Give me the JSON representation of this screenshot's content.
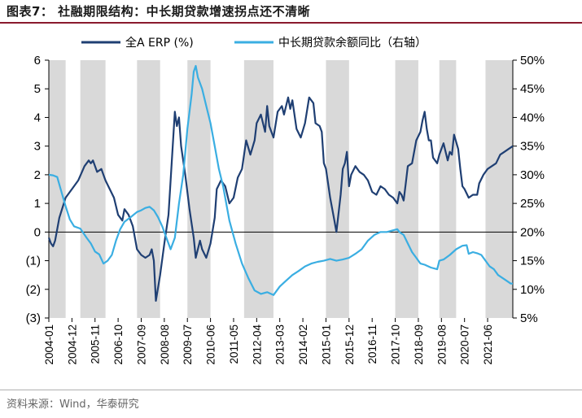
{
  "figure_title": "图表7： 社融期限结构：中长期贷款增速拐点还不清晰",
  "source": "资料来源：Wind，华泰研究",
  "colors": {
    "erp": "#1f3f73",
    "loan": "#3aaee2",
    "shade": "#d9d9d9",
    "title_rule": "#8a1a2e"
  },
  "chart_data": {
    "type": "line",
    "title": "社融期限结构：中长期贷款增速拐点还不清晰",
    "x_start": "2004-01",
    "x_end": "2022-06",
    "x_ticks": [
      "2004-01",
      "2004-12",
      "2005-11",
      "2006-10",
      "2007-09",
      "2008-08",
      "2009-07",
      "2010-06",
      "2011-05",
      "2012-04",
      "2013-03",
      "2014-02",
      "2015-01",
      "2015-12",
      "2016-11",
      "2017-10",
      "2018-09",
      "2019-08",
      "2020-07",
      "2021-06"
    ],
    "y_left": {
      "label": "",
      "ylim": [
        -3,
        6
      ],
      "ticks": [
        "6",
        "5",
        "4",
        "3",
        "2",
        "1",
        "0",
        "(1)",
        "(2)",
        "(3)"
      ]
    },
    "y_right": {
      "label": "",
      "ylim": [
        5,
        50
      ],
      "ticks": [
        "50%",
        "45%",
        "40%",
        "35%",
        "30%",
        "25%",
        "20%",
        "15%",
        "10%",
        "5%"
      ]
    },
    "shaded_periods": [
      [
        "2004-01",
        "2004-09"
      ],
      [
        "2005-04",
        "2006-04"
      ],
      [
        "2007-07",
        "2008-06"
      ],
      [
        "2009-07",
        "2010-06"
      ],
      [
        "2011-10",
        "2012-12"
      ],
      [
        "2015-01",
        "2015-12"
      ],
      [
        "2017-10",
        "2018-09"
      ],
      [
        "2019-07",
        "2020-03"
      ],
      [
        "2021-05",
        "2022-06"
      ]
    ],
    "series": [
      {
        "name": "全A ERP (%)",
        "axis": "left",
        "color": "#1f3f73",
        "points": [
          [
            "2004-01",
            -0.2
          ],
          [
            "2004-02",
            -0.4
          ],
          [
            "2004-03",
            -0.5
          ],
          [
            "2004-04",
            -0.3
          ],
          [
            "2004-06",
            0.5
          ],
          [
            "2004-09",
            1.2
          ],
          [
            "2004-12",
            1.5
          ],
          [
            "2005-03",
            1.8
          ],
          [
            "2005-06",
            2.3
          ],
          [
            "2005-08",
            2.5
          ],
          [
            "2005-09",
            2.4
          ],
          [
            "2005-10",
            2.5
          ],
          [
            "2005-12",
            2.1
          ],
          [
            "2006-02",
            2.2
          ],
          [
            "2006-04",
            1.8
          ],
          [
            "2006-06",
            1.5
          ],
          [
            "2006-08",
            1.2
          ],
          [
            "2006-10",
            0.6
          ],
          [
            "2006-12",
            0.4
          ],
          [
            "2007-01",
            0.8
          ],
          [
            "2007-03",
            0.6
          ],
          [
            "2007-05",
            0.2
          ],
          [
            "2007-07",
            -0.6
          ],
          [
            "2007-09",
            -0.8
          ],
          [
            "2007-11",
            -0.9
          ],
          [
            "2008-01",
            -0.8
          ],
          [
            "2008-02",
            -0.6
          ],
          [
            "2008-03",
            -1.0
          ],
          [
            "2008-04",
            -2.4
          ],
          [
            "2008-06",
            -1.5
          ],
          [
            "2008-08",
            -0.4
          ],
          [
            "2008-10",
            0.6
          ],
          [
            "2008-11",
            1.8
          ],
          [
            "2009-01",
            4.2
          ],
          [
            "2009-02",
            3.7
          ],
          [
            "2009-03",
            4.0
          ],
          [
            "2009-04",
            3.0
          ],
          [
            "2009-06",
            2.0
          ],
          [
            "2009-07",
            1.4
          ],
          [
            "2009-08",
            0.8
          ],
          [
            "2009-10",
            -0.2
          ],
          [
            "2009-11",
            -0.9
          ],
          [
            "2010-01",
            -0.3
          ],
          [
            "2010-02",
            -0.6
          ],
          [
            "2010-04",
            -0.9
          ],
          [
            "2010-06",
            -0.4
          ],
          [
            "2010-08",
            0.5
          ],
          [
            "2010-09",
            1.5
          ],
          [
            "2010-11",
            1.8
          ],
          [
            "2011-01",
            1.6
          ],
          [
            "2011-03",
            1.0
          ],
          [
            "2011-05",
            1.2
          ],
          [
            "2011-07",
            1.9
          ],
          [
            "2011-09",
            2.2
          ],
          [
            "2011-11",
            3.2
          ],
          [
            "2012-01",
            2.7
          ],
          [
            "2012-03",
            3.2
          ],
          [
            "2012-04",
            3.8
          ],
          [
            "2012-06",
            4.1
          ],
          [
            "2012-08",
            3.5
          ],
          [
            "2012-09",
            4.4
          ],
          [
            "2012-10",
            3.7
          ],
          [
            "2012-12",
            3.3
          ],
          [
            "2013-02",
            4.2
          ],
          [
            "2013-04",
            4.4
          ],
          [
            "2013-05",
            4.1
          ],
          [
            "2013-07",
            4.7
          ],
          [
            "2013-08",
            4.3
          ],
          [
            "2013-09",
            4.6
          ],
          [
            "2013-11",
            3.6
          ],
          [
            "2014-01",
            3.3
          ],
          [
            "2014-03",
            3.8
          ],
          [
            "2014-05",
            4.7
          ],
          [
            "2014-07",
            4.5
          ],
          [
            "2014-08",
            3.8
          ],
          [
            "2014-10",
            3.7
          ],
          [
            "2014-11",
            3.5
          ],
          [
            "2014-12",
            2.4
          ],
          [
            "2015-01",
            2.2
          ],
          [
            "2015-03",
            1.2
          ],
          [
            "2015-05",
            0.4
          ],
          [
            "2015-06",
            0.0
          ],
          [
            "2015-08",
            1.3
          ],
          [
            "2015-09",
            2.2
          ],
          [
            "2015-10",
            2.4
          ],
          [
            "2015-11",
            2.8
          ],
          [
            "2015-12",
            1.6
          ],
          [
            "2016-01",
            2.0
          ],
          [
            "2016-03",
            2.3
          ],
          [
            "2016-05",
            2.1
          ],
          [
            "2016-07",
            2.0
          ],
          [
            "2016-09",
            1.8
          ],
          [
            "2016-11",
            1.4
          ],
          [
            "2017-01",
            1.3
          ],
          [
            "2017-03",
            1.6
          ],
          [
            "2017-05",
            1.5
          ],
          [
            "2017-07",
            1.3
          ],
          [
            "2017-09",
            1.2
          ],
          [
            "2017-11",
            1.0
          ],
          [
            "2017-12",
            1.4
          ],
          [
            "2018-01",
            1.3
          ],
          [
            "2018-02",
            1.1
          ],
          [
            "2018-03",
            1.7
          ],
          [
            "2018-04",
            2.3
          ],
          [
            "2018-06",
            2.4
          ],
          [
            "2018-08",
            3.2
          ],
          [
            "2018-10",
            3.5
          ],
          [
            "2018-11",
            3.9
          ],
          [
            "2018-12",
            4.2
          ],
          [
            "2019-01",
            3.6
          ],
          [
            "2019-02",
            3.2
          ],
          [
            "2019-03",
            3.2
          ],
          [
            "2019-04",
            2.6
          ],
          [
            "2019-06",
            2.4
          ],
          [
            "2019-07",
            2.7
          ],
          [
            "2019-09",
            3.1
          ],
          [
            "2019-11",
            2.5
          ],
          [
            "2019-12",
            2.8
          ],
          [
            "2020-01",
            2.7
          ],
          [
            "2020-02",
            3.4
          ],
          [
            "2020-04",
            2.9
          ],
          [
            "2020-05",
            2.2
          ],
          [
            "2020-06",
            1.6
          ],
          [
            "2020-07",
            1.5
          ],
          [
            "2020-09",
            1.2
          ],
          [
            "2020-11",
            1.3
          ],
          [
            "2021-01",
            1.3
          ],
          [
            "2021-02",
            1.7
          ],
          [
            "2021-04",
            2.0
          ],
          [
            "2021-06",
            2.2
          ],
          [
            "2021-08",
            2.3
          ],
          [
            "2021-10",
            2.4
          ],
          [
            "2021-12",
            2.7
          ],
          [
            "2022-02",
            2.8
          ],
          [
            "2022-04",
            2.9
          ],
          [
            "2022-06",
            3.0
          ]
        ]
      },
      {
        "name": "中长期贷款余额同比（右轴）",
        "axis": "right",
        "color": "#3aaee2",
        "points": [
          [
            "2004-01",
            30.0
          ],
          [
            "2004-03",
            29.9
          ],
          [
            "2004-05",
            29.6
          ],
          [
            "2004-07",
            27.0
          ],
          [
            "2004-09",
            24.5
          ],
          [
            "2004-11",
            22.2
          ],
          [
            "2005-01",
            21.0
          ],
          [
            "2005-04",
            20.6
          ],
          [
            "2005-07",
            19.0
          ],
          [
            "2005-09",
            18.0
          ],
          [
            "2005-11",
            16.6
          ],
          [
            "2006-01",
            16.1
          ],
          [
            "2006-03",
            14.5
          ],
          [
            "2006-05",
            15.0
          ],
          [
            "2006-07",
            16.0
          ],
          [
            "2006-09",
            18.5
          ],
          [
            "2006-11",
            20.5
          ],
          [
            "2007-01",
            21.8
          ],
          [
            "2007-04",
            22.6
          ],
          [
            "2007-07",
            23.5
          ],
          [
            "2007-09",
            23.8
          ],
          [
            "2007-11",
            24.2
          ],
          [
            "2008-01",
            24.4
          ],
          [
            "2008-03",
            23.8
          ],
          [
            "2008-05",
            22.6
          ],
          [
            "2008-07",
            21.0
          ],
          [
            "2008-09",
            19.0
          ],
          [
            "2008-11",
            17.0
          ],
          [
            "2009-01",
            19.0
          ],
          [
            "2009-03",
            25.0
          ],
          [
            "2009-05",
            30.0
          ],
          [
            "2009-07",
            38.0
          ],
          [
            "2009-09",
            44.0
          ],
          [
            "2009-10",
            48.0
          ],
          [
            "2009-11",
            49.0
          ],
          [
            "2009-12",
            47.0
          ],
          [
            "2010-02",
            45.0
          ],
          [
            "2010-04",
            42.0
          ],
          [
            "2010-06",
            39.0
          ],
          [
            "2010-08",
            35.0
          ],
          [
            "2010-10",
            31.0
          ],
          [
            "2010-12",
            28.0
          ],
          [
            "2011-03",
            22.0
          ],
          [
            "2011-06",
            18.0
          ],
          [
            "2011-09",
            14.5
          ],
          [
            "2011-12",
            12.0
          ],
          [
            "2012-03",
            9.8
          ],
          [
            "2012-06",
            9.2
          ],
          [
            "2012-09",
            9.5
          ],
          [
            "2012-12",
            9.0
          ],
          [
            "2013-03",
            10.5
          ],
          [
            "2013-06",
            11.5
          ],
          [
            "2013-09",
            12.5
          ],
          [
            "2013-12",
            13.2
          ],
          [
            "2014-03",
            14.0
          ],
          [
            "2014-06",
            14.5
          ],
          [
            "2014-09",
            14.8
          ],
          [
            "2014-12",
            15.0
          ],
          [
            "2015-03",
            15.3
          ],
          [
            "2015-06",
            15.0
          ],
          [
            "2015-09",
            15.2
          ],
          [
            "2015-12",
            15.5
          ],
          [
            "2016-03",
            16.2
          ],
          [
            "2016-06",
            17.0
          ],
          [
            "2016-09",
            18.5
          ],
          [
            "2016-12",
            19.5
          ],
          [
            "2017-03",
            20.0
          ],
          [
            "2017-06",
            20.0
          ],
          [
            "2017-09",
            20.3
          ],
          [
            "2017-11",
            20.5
          ],
          [
            "2017-12",
            20.0
          ],
          [
            "2018-02",
            19.5
          ],
          [
            "2018-04",
            18.0
          ],
          [
            "2018-06",
            16.5
          ],
          [
            "2018-08",
            15.5
          ],
          [
            "2018-10",
            14.5
          ],
          [
            "2018-12",
            14.3
          ],
          [
            "2019-03",
            13.8
          ],
          [
            "2019-06",
            13.5
          ],
          [
            "2019-07",
            15.0
          ],
          [
            "2019-09",
            15.2
          ],
          [
            "2019-12",
            16.0
          ],
          [
            "2020-03",
            17.0
          ],
          [
            "2020-06",
            17.6
          ],
          [
            "2020-08",
            17.7
          ],
          [
            "2020-09",
            16.2
          ],
          [
            "2020-11",
            16.5
          ],
          [
            "2021-01",
            16.3
          ],
          [
            "2021-03",
            16.0
          ],
          [
            "2021-05",
            15.0
          ],
          [
            "2021-07",
            14.0
          ],
          [
            "2021-09",
            13.5
          ],
          [
            "2021-11",
            12.5
          ],
          [
            "2022-01",
            12.0
          ],
          [
            "2022-03",
            11.5
          ],
          [
            "2022-05",
            11.0
          ],
          [
            "2022-06",
            11.0
          ]
        ]
      }
    ]
  }
}
